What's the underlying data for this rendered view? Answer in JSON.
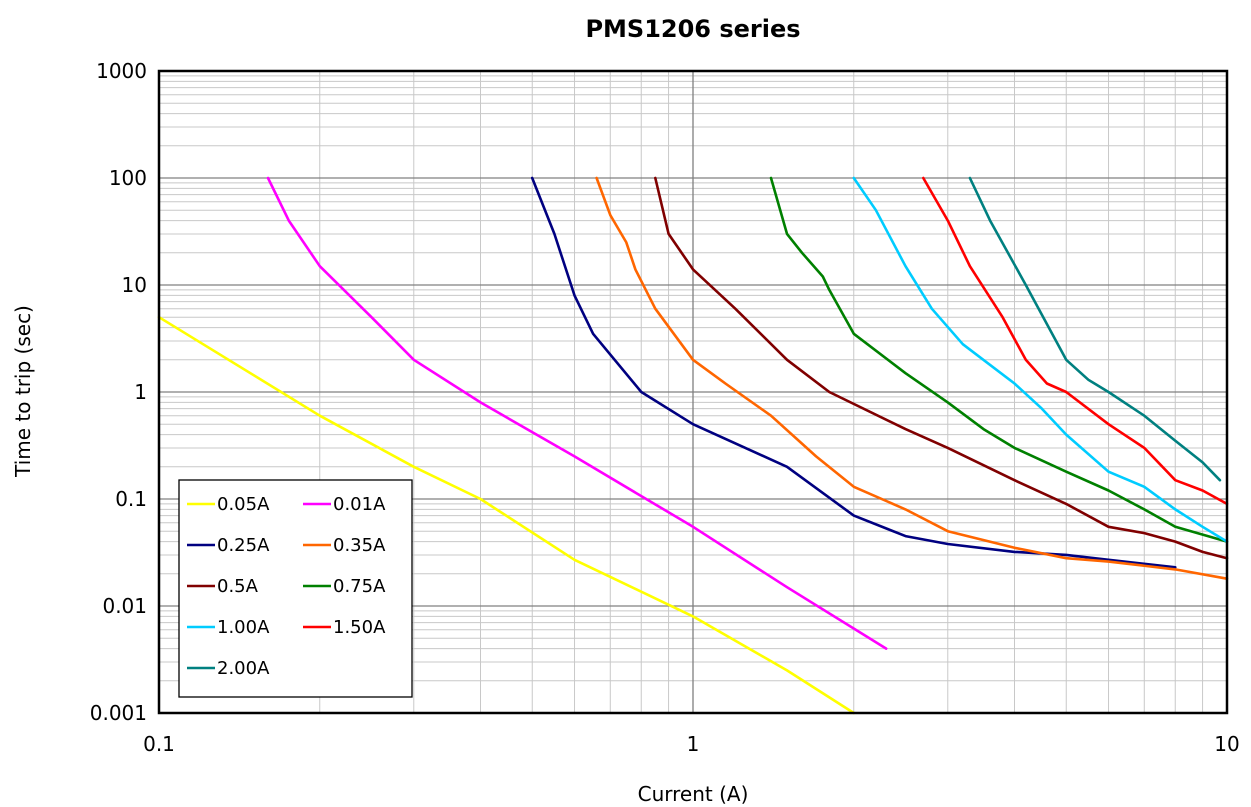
{
  "chart_data": {
    "type": "line",
    "title": "PMS1206 series",
    "xlabel": "Current (A)",
    "ylabel": "Time to trip (sec)",
    "x_scale": "log",
    "y_scale": "log",
    "xlim": [
      0.1,
      10
    ],
    "ylim": [
      0.001,
      1000
    ],
    "x_ticks": [
      {
        "value": 0.1,
        "label": "0.1"
      },
      {
        "value": 1,
        "label": "1"
      },
      {
        "value": 10,
        "label": "10"
      }
    ],
    "y_ticks": [
      {
        "value": 0.001,
        "label": "0.001"
      },
      {
        "value": 0.01,
        "label": "0.01"
      },
      {
        "value": 0.1,
        "label": "0.1"
      },
      {
        "value": 1,
        "label": "1"
      },
      {
        "value": 10,
        "label": "10"
      },
      {
        "value": 100,
        "label": "100"
      },
      {
        "value": 1000,
        "label": "1000"
      }
    ],
    "grid": true,
    "legend_position": "bottom-left",
    "series": [
      {
        "name": "0.05A",
        "color": "#ffff00",
        "points": [
          [
            0.1,
            5
          ],
          [
            0.2,
            0.6
          ],
          [
            0.3,
            0.2
          ],
          [
            0.4,
            0.1
          ],
          [
            0.6,
            0.027
          ],
          [
            1,
            0.008
          ],
          [
            1.5,
            0.0025
          ],
          [
            2,
            0.001
          ]
        ]
      },
      {
        "name": "0.01A",
        "color": "#ff00ff",
        "points": [
          [
            0.16,
            100
          ],
          [
            0.175,
            40
          ],
          [
            0.2,
            15
          ],
          [
            0.25,
            5
          ],
          [
            0.3,
            2
          ],
          [
            0.4,
            0.8
          ],
          [
            0.6,
            0.25
          ],
          [
            1,
            0.055
          ],
          [
            1.5,
            0.015
          ],
          [
            2.3,
            0.004
          ]
        ]
      },
      {
        "name": "0.25A",
        "color": "#000080",
        "points": [
          [
            0.5,
            100
          ],
          [
            0.55,
            30
          ],
          [
            0.6,
            8
          ],
          [
            0.65,
            3.5
          ],
          [
            0.8,
            1
          ],
          [
            1,
            0.5
          ],
          [
            1.5,
            0.2
          ],
          [
            2,
            0.07
          ],
          [
            2.5,
            0.045
          ],
          [
            3,
            0.038
          ],
          [
            4,
            0.032
          ],
          [
            5,
            0.03
          ],
          [
            6,
            0.027
          ],
          [
            8,
            0.023
          ]
        ]
      },
      {
        "name": "0.35A",
        "color": "#ff6600",
        "points": [
          [
            0.66,
            100
          ],
          [
            0.7,
            45
          ],
          [
            0.75,
            25
          ],
          [
            0.78,
            14
          ],
          [
            0.85,
            6
          ],
          [
            1,
            2
          ],
          [
            1.15,
            1.2
          ],
          [
            1.4,
            0.6
          ],
          [
            1.7,
            0.25
          ],
          [
            2,
            0.13
          ],
          [
            2.5,
            0.08
          ],
          [
            3,
            0.05
          ],
          [
            4,
            0.035
          ],
          [
            5,
            0.028
          ],
          [
            6,
            0.026
          ],
          [
            8,
            0.022
          ],
          [
            10,
            0.018
          ]
        ]
      },
      {
        "name": "0.5A",
        "color": "#800000",
        "points": [
          [
            0.85,
            100
          ],
          [
            0.9,
            30
          ],
          [
            1,
            14
          ],
          [
            1.2,
            6
          ],
          [
            1.5,
            2
          ],
          [
            1.8,
            1
          ],
          [
            2.5,
            0.45
          ],
          [
            3,
            0.3
          ],
          [
            4,
            0.15
          ],
          [
            5,
            0.09
          ],
          [
            6,
            0.055
          ],
          [
            7,
            0.048
          ],
          [
            8,
            0.04
          ],
          [
            9,
            0.032
          ],
          [
            10,
            0.028
          ]
        ]
      },
      {
        "name": "0.75A",
        "color": "#008000",
        "points": [
          [
            1.4,
            100
          ],
          [
            1.5,
            30
          ],
          [
            1.6,
            20
          ],
          [
            1.75,
            12
          ],
          [
            1.8,
            9
          ],
          [
            2,
            3.5
          ],
          [
            2.5,
            1.5
          ],
          [
            3,
            0.8
          ],
          [
            3.5,
            0.45
          ],
          [
            4,
            0.3
          ],
          [
            5,
            0.18
          ],
          [
            6,
            0.12
          ],
          [
            7,
            0.08
          ],
          [
            8,
            0.055
          ],
          [
            10,
            0.04
          ]
        ]
      },
      {
        "name": "1.00A",
        "color": "#00ccff",
        "points": [
          [
            2,
            100
          ],
          [
            2.2,
            50
          ],
          [
            2.5,
            15
          ],
          [
            2.8,
            6
          ],
          [
            3.2,
            2.8
          ],
          [
            4,
            1.2
          ],
          [
            4.5,
            0.7
          ],
          [
            5,
            0.4
          ],
          [
            6,
            0.18
          ],
          [
            7,
            0.13
          ],
          [
            8,
            0.08
          ],
          [
            9,
            0.055
          ],
          [
            10,
            0.04
          ]
        ]
      },
      {
        "name": "1.50A",
        "color": "#ff0000",
        "points": [
          [
            2.7,
            100
          ],
          [
            3,
            40
          ],
          [
            3.3,
            15
          ],
          [
            3.8,
            5
          ],
          [
            4.2,
            2
          ],
          [
            4.6,
            1.2
          ],
          [
            5,
            1
          ],
          [
            6,
            0.5
          ],
          [
            7,
            0.3
          ],
          [
            8,
            0.15
          ],
          [
            9,
            0.12
          ],
          [
            10,
            0.09
          ]
        ]
      },
      {
        "name": "2.00A",
        "color": "#008080",
        "points": [
          [
            3.3,
            100
          ],
          [
            3.6,
            40
          ],
          [
            4.2,
            10
          ],
          [
            5,
            2
          ],
          [
            5.5,
            1.3
          ],
          [
            6,
            1
          ],
          [
            7,
            0.6
          ],
          [
            8,
            0.35
          ],
          [
            9,
            0.22
          ],
          [
            9.7,
            0.15
          ]
        ]
      }
    ]
  }
}
